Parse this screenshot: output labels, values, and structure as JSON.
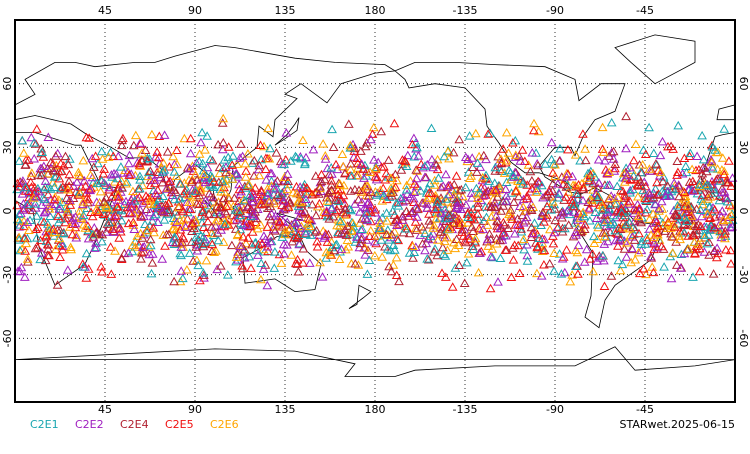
{
  "map": {
    "xlim": [
      0,
      360
    ],
    "ylim": [
      -90,
      90
    ],
    "xticks": [
      45,
      90,
      135,
      180,
      -135,
      -90,
      -45
    ],
    "yticks": [
      60,
      30,
      0,
      -30,
      -60
    ],
    "grid": true,
    "legend": [
      {
        "name": "C2E1",
        "color": "#1aa6b0"
      },
      {
        "name": "C2E2",
        "color": "#a020c0"
      },
      {
        "name": "C2E4",
        "color": "#b02030"
      },
      {
        "name": "C2E5",
        "color": "#f01010"
      },
      {
        "name": "C2E6",
        "color": "#ffa500"
      }
    ],
    "footer": "STARwet.2025-06-15"
  }
}
